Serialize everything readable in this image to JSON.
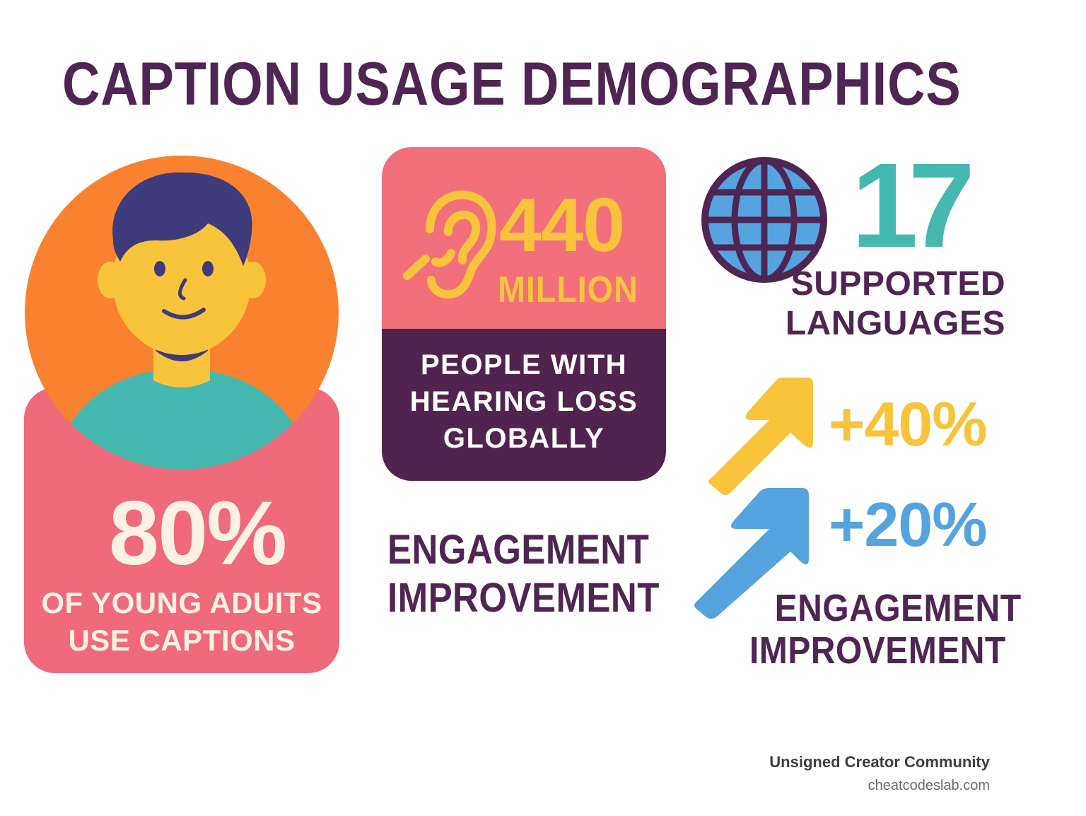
{
  "title": "CAPTION USAGE DEMOGRAPHICS",
  "young_adults": {
    "value": "80%",
    "caption_line1": "OF YOUNG ADUITS",
    "caption_line2": "USE CAPTIONS"
  },
  "hearing_loss": {
    "value": "440",
    "unit": "MILLION",
    "caption_line1": "PEOPLE WITH",
    "caption_line2": "HEARING LOSS",
    "caption_line3": "GLOBALLY"
  },
  "languages": {
    "value": "17",
    "caption_line1": "SUPPORTED",
    "caption_line2": "LANGUAGES"
  },
  "engagement": {
    "left_line1": "ENGAGEMENT",
    "left_line2": "IMPROVEMENT",
    "increase_1": "+40%",
    "increase_2": "+20%",
    "right_line1": "ENGAGEMENT",
    "right_line2": "IMPROVEMENT"
  },
  "footer": {
    "organization": "Unsigned Creator Community",
    "website": "cheatcodeslab.com"
  },
  "colors": {
    "title": "#4f2553",
    "coral": "#ef6a7a",
    "orange": "#f98231",
    "teal": "#45b8b0",
    "yellow": "#f8c43c",
    "blue": "#55a4df",
    "plum": "#51244f",
    "navy": "#3e3b7c"
  },
  "icons": [
    "person-avatar-icon",
    "ear-icon",
    "globe-icon",
    "yellow-arrow-up-icon",
    "blue-arrow-up-icon"
  ]
}
